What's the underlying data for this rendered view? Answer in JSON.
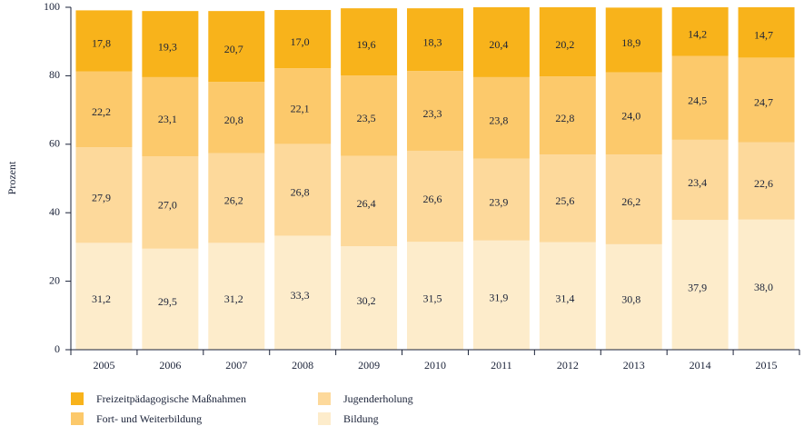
{
  "chart_data": {
    "type": "stacked_bar",
    "ylabel": "Prozent",
    "categories": [
      "2005",
      "2006",
      "2007",
      "2008",
      "2009",
      "2010",
      "2011",
      "2012",
      "2013",
      "2014",
      "2015"
    ],
    "series": [
      {
        "name": "Freizeitpädagogische Maßnahmen",
        "color": "#f8b31b",
        "values": [
          17.8,
          19.3,
          20.7,
          17.0,
          19.6,
          18.3,
          20.4,
          20.2,
          18.9,
          14.2,
          14.7
        ],
        "value_labels": [
          "17,8",
          "19,3",
          "20,7",
          "17,0",
          "19,6",
          "18,3",
          "20,4",
          "20,2",
          "18,9",
          "14,2",
          "14,7"
        ]
      },
      {
        "name": "Fort- und Weiterbildung",
        "color": "#fcc96b",
        "values": [
          22.2,
          23.1,
          20.8,
          22.1,
          23.5,
          23.3,
          23.8,
          22.8,
          24.0,
          24.5,
          24.7
        ],
        "value_labels": [
          "22,2",
          "23,1",
          "20,8",
          "22,1",
          "23,5",
          "23,3",
          "23,8",
          "22,8",
          "24,0",
          "24,5",
          "24,7"
        ]
      },
      {
        "name": "Jugenderholung",
        "color": "#fdd99b",
        "values": [
          27.9,
          27.0,
          26.2,
          26.8,
          26.4,
          26.6,
          23.9,
          25.6,
          26.2,
          23.4,
          22.6
        ],
        "value_labels": [
          "27,9",
          "27,0",
          "26,2",
          "26,8",
          "26,4",
          "26,6",
          "23,9",
          "25,6",
          "26,2",
          "23,4",
          "22,6"
        ]
      },
      {
        "name": "Bildung",
        "color": "#fdeccb",
        "values": [
          31.2,
          29.5,
          31.2,
          33.3,
          30.2,
          31.5,
          31.9,
          31.4,
          30.8,
          37.9,
          38.0
        ],
        "value_labels": [
          "31,2",
          "29,5",
          "31,2",
          "33,3",
          "30,2",
          "31,5",
          "31,9",
          "31,4",
          "30,8",
          "37,9",
          "38,0"
        ]
      }
    ],
    "ylim": [
      0,
      100
    ],
    "yticks": [
      0,
      20,
      40,
      60,
      80,
      100
    ],
    "grid": false
  }
}
